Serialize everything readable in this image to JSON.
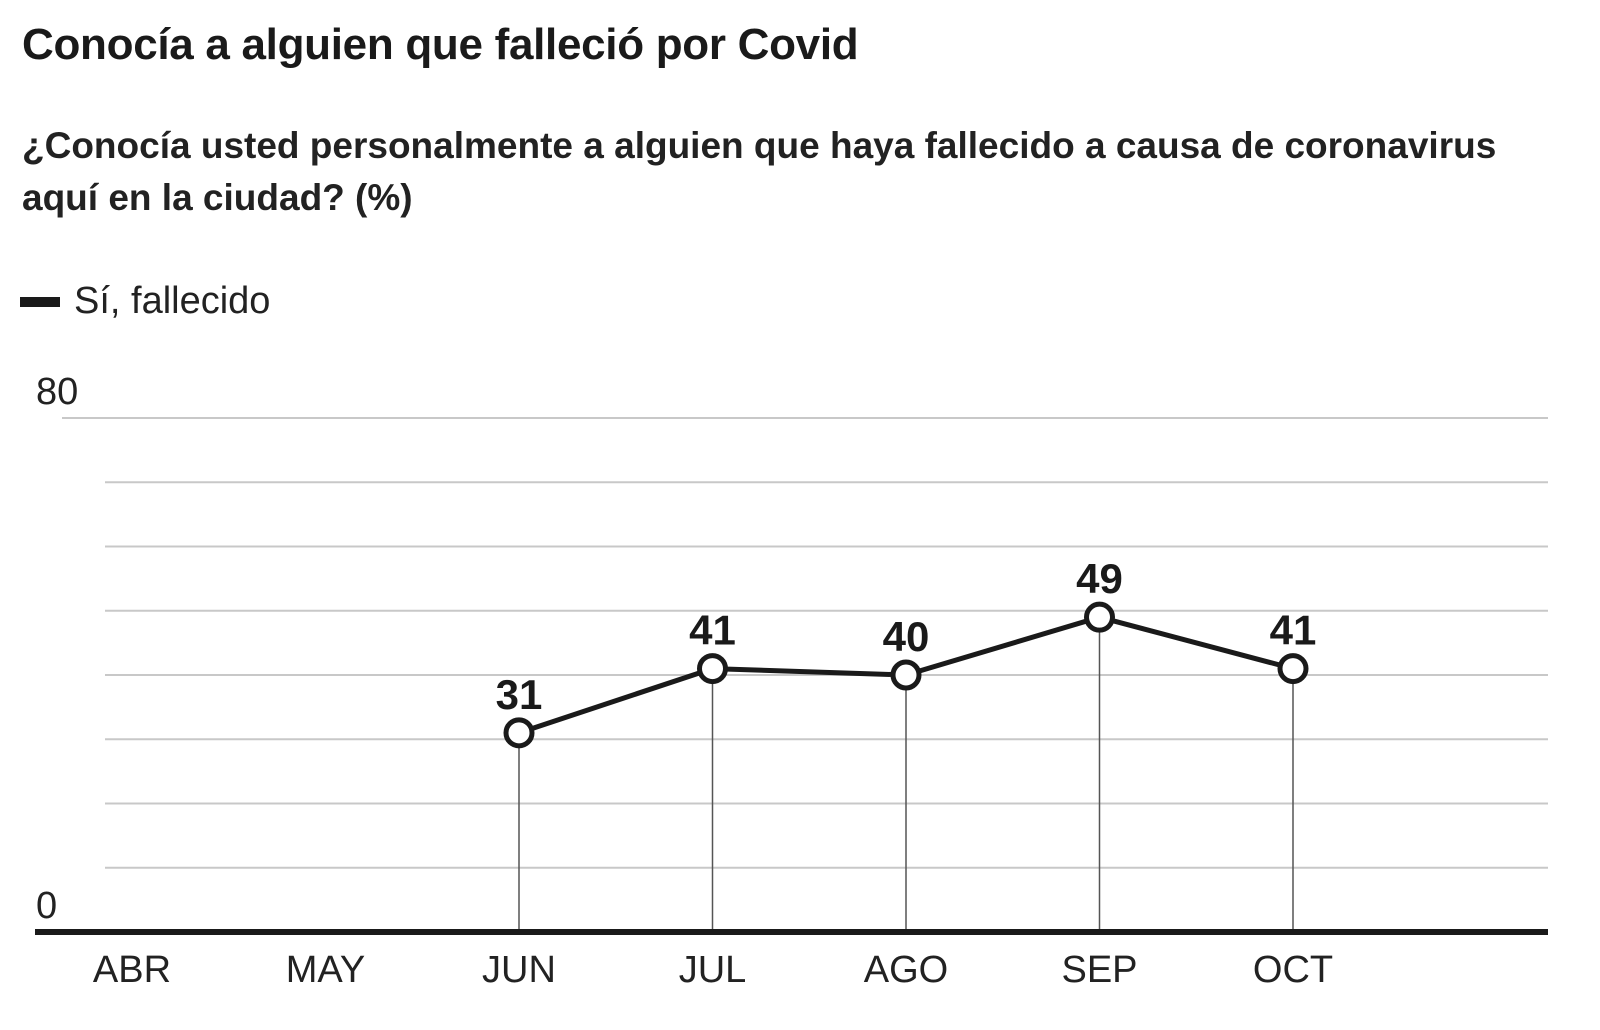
{
  "chart_data": {
    "type": "line",
    "title": "Conocía a alguien que falleció por Covid",
    "subtitle": "¿Conocía usted personalmente a alguien que haya fallecido a causa de coronavirus aquí en la ciudad? (%)",
    "categories": [
      "ABR",
      "MAY",
      "JUN",
      "JUL",
      "AGO",
      "SEP",
      "OCT"
    ],
    "series": [
      {
        "name": "Sí, fallecido",
        "values": [
          null,
          null,
          31,
          41,
          40,
          49,
          41
        ]
      }
    ],
    "ylim": [
      0,
      80
    ],
    "yticks_labeled": [
      "0",
      "80"
    ],
    "ygrid_step": 10,
    "grid": true,
    "legend_position": "top-left",
    "colors": {
      "line": "#1a1a1a",
      "grid": "#c8c8c8",
      "marker_fill": "#ffffff"
    }
  }
}
